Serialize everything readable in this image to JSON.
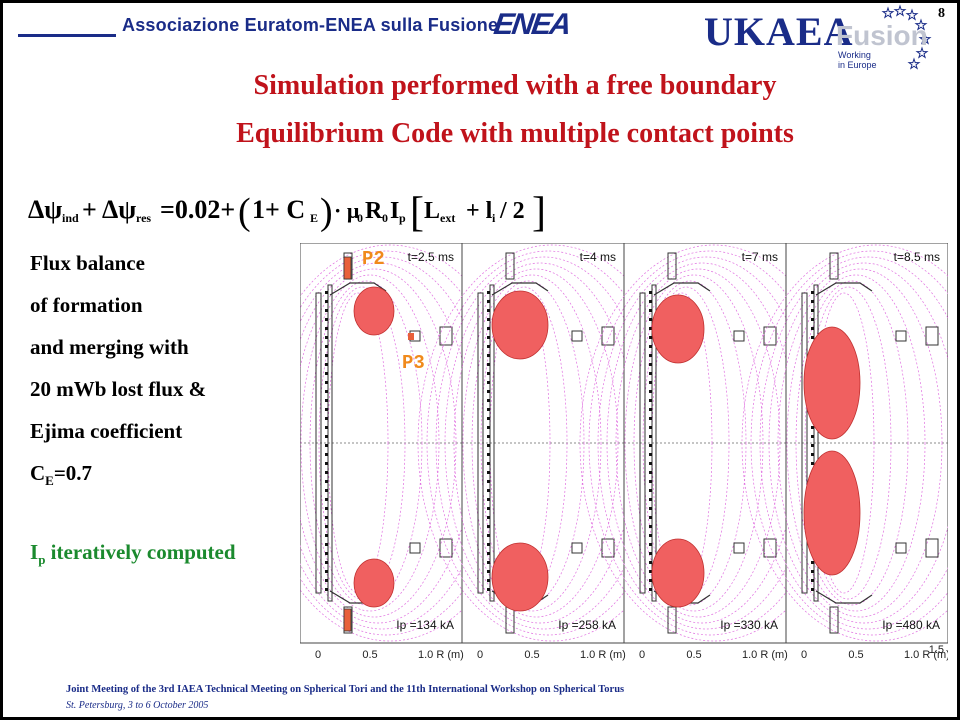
{
  "header": {
    "association": "Associazione Euratom-ENEA sulla Fusione",
    "enea_logo": "ENEA",
    "ukaea_logo": "UKAEA",
    "fusion_logo": "Fusion",
    "working_in_europe": "Working in Europe",
    "slide_number": "8"
  },
  "title": {
    "line1": "Simulation performed with a free boundary",
    "line2": "Equilibrium Code with multiple contact points"
  },
  "equation": {
    "lhs_a": "Δψ",
    "lhs_a_sub": "ind",
    "plus1": "+",
    "lhs_b": "Δψ",
    "lhs_b_sub": "res",
    "eq_value": "=0.02+",
    "one_plus": "1+ C",
    "ce_sub": "E",
    "mu_term": "· μ",
    "mu_sub": "0",
    "r_term": "R",
    "r_sub": "0",
    "i_term": "I",
    "i_sub": "p",
    "l_term": "L",
    "l_sub": "ext",
    "plus_li": "+ l",
    "li_sub": "i",
    "div2": "/ 2"
  },
  "description": {
    "lines": [
      "Flux balance",
      "of formation",
      "and merging with",
      "20 mWb lost flux &",
      "Ejima coefficient"
    ],
    "ce_prefix": "C",
    "ce_sub": "E",
    "ce_value": "=0.7",
    "ip_prefix": "I",
    "ip_sub": "p",
    "ip_text": " iteratively computed"
  },
  "plots": {
    "panels": [
      {
        "time": "t=2.5 ms",
        "current_label": "I",
        "current_sub": "p",
        "current_value": "=134 kA"
      },
      {
        "time": "t=4 ms",
        "current_label": "I",
        "current_sub": "p",
        "current_value": "=258 kA"
      },
      {
        "time": "t=7 ms",
        "current_label": "I",
        "current_sub": "p",
        "current_value": "=330 kA"
      },
      {
        "time": "t=8.5 ms",
        "current_label": "I",
        "current_sub": "p",
        "current_value": "=480 kA"
      }
    ],
    "x_ticks": [
      "0",
      "0.5",
      "1.0 R (m)"
    ],
    "last_tick_extra": "1.5",
    "point_labels": [
      "P2",
      "P3"
    ]
  },
  "footer": {
    "meeting": "Joint Meeting of the 3rd IAEA Technical Meeting on Spherical Tori and the 11th International Workshop on Spherical Torus",
    "location": "St. Petersburg, 3 to 6 October 2005"
  },
  "colors": {
    "title_red": "#c0131b",
    "brand_blue": "#1a2c88",
    "computed_green": "#1b8a2e",
    "plasma_red": "#f06060",
    "point_orange": "#f08a1c"
  }
}
